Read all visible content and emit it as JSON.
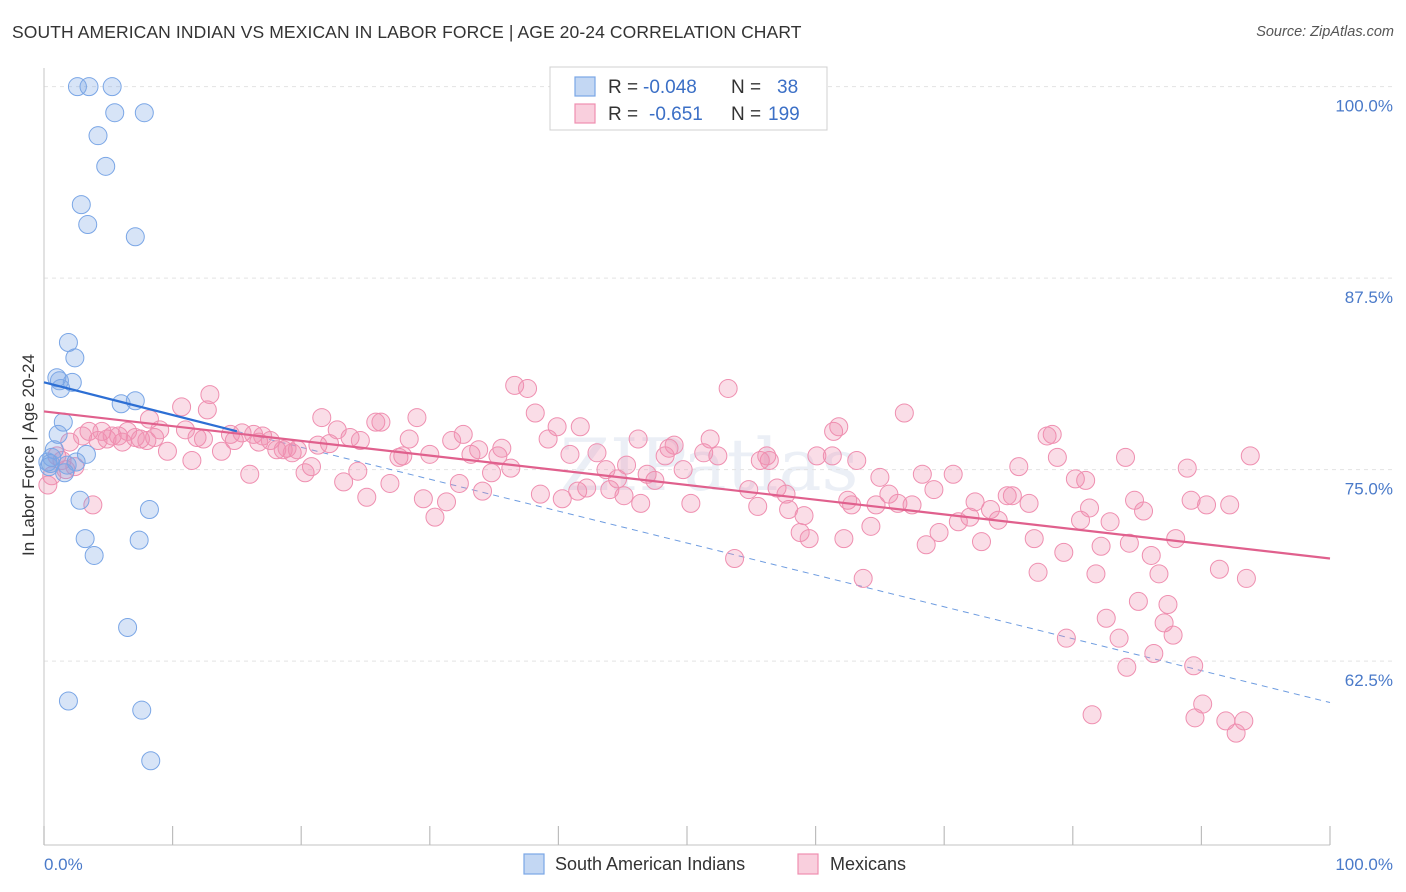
{
  "title": "SOUTH AMERICAN INDIAN VS MEXICAN IN LABOR FORCE | AGE 20-24 CORRELATION CHART",
  "source": "Source: ZipAtlas.com",
  "watermark": "ZIPatlas",
  "colors": {
    "blue": "#7aa6e6",
    "blue_line": "#2d6fd4",
    "pink": "#ef8fb0",
    "pink_line": "#e0608d",
    "tick": "#4a7ac9"
  },
  "legend": {
    "rows": [
      {
        "r_label": "R =",
        "r_value": "-0.048",
        "n_label": "N =",
        "n_value": "38"
      },
      {
        "r_label": "R =",
        "r_value": "-0.651",
        "n_label": "N =",
        "n_value": "199"
      }
    ]
  },
  "chart_data": {
    "type": "scatter",
    "title": "SOUTH AMERICAN INDIAN VS MEXICAN IN LABOR FORCE | AGE 20-24 CORRELATION CHART",
    "xlabel": "",
    "ylabel": "In Labor Force | Age 20-24",
    "xlim": [
      0,
      100
    ],
    "ylim": [
      50.5,
      100.5
    ],
    "x_tick_labels": [
      "0.0%",
      "100.0%"
    ],
    "y_ticks": [
      62.5,
      75.0,
      87.5,
      100.0
    ],
    "y_tick_labels": [
      "62.5%",
      "75.0%",
      "87.5%",
      "100.0%"
    ],
    "grid": true,
    "legend_position": "bottom-center",
    "series": [
      {
        "name": "South American Indians",
        "color": "#7aa6e6",
        "points": [
          [
            0.3,
            75.5
          ],
          [
            0.5,
            75.4
          ],
          [
            0.6,
            75.8
          ],
          [
            0.8,
            76.3
          ],
          [
            1.0,
            81.0
          ],
          [
            1.1,
            77.3
          ],
          [
            1.2,
            80.8
          ],
          [
            1.3,
            80.3
          ],
          [
            1.5,
            78.1
          ],
          [
            1.6,
            74.8
          ],
          [
            1.8,
            75.3
          ],
          [
            1.9,
            83.3
          ],
          [
            2.2,
            80.7
          ],
          [
            2.4,
            82.3
          ],
          [
            2.5,
            75.5
          ],
          [
            2.6,
            100.0
          ],
          [
            2.8,
            73.0
          ],
          [
            2.9,
            92.3
          ],
          [
            3.2,
            70.5
          ],
          [
            3.3,
            76.0
          ],
          [
            3.4,
            91.0
          ],
          [
            3.5,
            100.0
          ],
          [
            3.9,
            69.4
          ],
          [
            4.2,
            96.8
          ],
          [
            4.8,
            94.8
          ],
          [
            5.3,
            100.0
          ],
          [
            5.5,
            98.3
          ],
          [
            6.0,
            79.3
          ],
          [
            6.5,
            64.7
          ],
          [
            7.1,
            90.2
          ],
          [
            7.1,
            79.5
          ],
          [
            7.4,
            70.4
          ],
          [
            7.6,
            59.3
          ],
          [
            7.8,
            98.3
          ],
          [
            8.2,
            72.4
          ],
          [
            8.3,
            56.0
          ],
          [
            1.9,
            59.9
          ],
          [
            0.4,
            75.2
          ]
        ],
        "trend": {
          "x": [
            0,
            15
          ],
          "y": [
            80.7,
            77.5
          ]
        },
        "trend_extended": {
          "x": [
            15,
            100
          ],
          "y": [
            77.5,
            59.8
          ]
        }
      },
      {
        "name": "Mexicans",
        "color": "#ef8fb0",
        "points": [
          [
            0.3,
            74.0
          ],
          [
            0.6,
            74.6
          ],
          [
            1.0,
            75.9
          ],
          [
            1.4,
            75.6
          ],
          [
            1.7,
            75.0
          ],
          [
            2.0,
            76.8
          ],
          [
            2.4,
            75.2
          ],
          [
            3.0,
            77.2
          ],
          [
            3.5,
            77.5
          ],
          [
            3.8,
            72.7
          ],
          [
            4.2,
            76.9
          ],
          [
            4.5,
            77.5
          ],
          [
            4.9,
            77.0
          ],
          [
            5.3,
            77.2
          ],
          [
            5.8,
            77.2
          ],
          [
            6.1,
            76.8
          ],
          [
            6.5,
            77.5
          ],
          [
            7.1,
            77.1
          ],
          [
            7.5,
            77.0
          ],
          [
            8.0,
            76.9
          ],
          [
            8.2,
            78.3
          ],
          [
            8.6,
            77.1
          ],
          [
            9.0,
            77.6
          ],
          [
            9.6,
            76.2
          ],
          [
            10.7,
            79.1
          ],
          [
            11.0,
            77.6
          ],
          [
            11.5,
            75.6
          ],
          [
            11.9,
            77.1
          ],
          [
            12.4,
            77.0
          ],
          [
            12.7,
            78.9
          ],
          [
            12.9,
            79.9
          ],
          [
            13.8,
            76.2
          ],
          [
            14.5,
            77.3
          ],
          [
            14.8,
            76.9
          ],
          [
            15.4,
            77.4
          ],
          [
            16.0,
            74.7
          ],
          [
            16.3,
            77.3
          ],
          [
            16.7,
            76.8
          ],
          [
            17.0,
            77.2
          ],
          [
            17.6,
            76.9
          ],
          [
            18.1,
            76.3
          ],
          [
            18.6,
            76.3
          ],
          [
            18.9,
            76.4
          ],
          [
            19.3,
            76.1
          ],
          [
            19.7,
            76.3
          ],
          [
            20.3,
            74.8
          ],
          [
            20.8,
            75.2
          ],
          [
            21.3,
            76.6
          ],
          [
            21.6,
            78.4
          ],
          [
            22.2,
            76.7
          ],
          [
            22.8,
            77.6
          ],
          [
            23.3,
            74.2
          ],
          [
            23.8,
            77.1
          ],
          [
            24.4,
            74.9
          ],
          [
            24.6,
            76.9
          ],
          [
            25.1,
            73.2
          ],
          [
            25.8,
            78.1
          ],
          [
            26.2,
            78.1
          ],
          [
            26.9,
            74.1
          ],
          [
            27.6,
            75.8
          ],
          [
            27.9,
            75.9
          ],
          [
            28.4,
            77.0
          ],
          [
            29.0,
            78.4
          ],
          [
            29.5,
            73.1
          ],
          [
            30.0,
            76.0
          ],
          [
            30.4,
            71.9
          ],
          [
            31.3,
            72.9
          ],
          [
            31.7,
            76.9
          ],
          [
            32.3,
            74.1
          ],
          [
            32.6,
            77.3
          ],
          [
            33.2,
            76.0
          ],
          [
            33.8,
            76.3
          ],
          [
            34.1,
            73.6
          ],
          [
            34.8,
            74.8
          ],
          [
            35.3,
            75.9
          ],
          [
            35.6,
            76.4
          ],
          [
            36.3,
            75.1
          ],
          [
            36.6,
            80.5
          ],
          [
            37.6,
            80.3
          ],
          [
            38.2,
            78.7
          ],
          [
            38.6,
            73.4
          ],
          [
            39.2,
            77.0
          ],
          [
            39.9,
            77.8
          ],
          [
            40.3,
            73.1
          ],
          [
            40.9,
            76.0
          ],
          [
            41.5,
            73.6
          ],
          [
            41.7,
            77.8
          ],
          [
            42.2,
            73.8
          ],
          [
            43.0,
            76.1
          ],
          [
            43.7,
            75.0
          ],
          [
            44.0,
            73.7
          ],
          [
            44.6,
            74.4
          ],
          [
            45.1,
            73.3
          ],
          [
            45.3,
            75.3
          ],
          [
            46.2,
            77.0
          ],
          [
            46.4,
            72.8
          ],
          [
            46.9,
            74.7
          ],
          [
            47.5,
            74.3
          ],
          [
            48.3,
            75.9
          ],
          [
            48.6,
            76.4
          ],
          [
            49.0,
            76.6
          ],
          [
            49.7,
            75.0
          ],
          [
            50.3,
            72.8
          ],
          [
            51.3,
            76.1
          ],
          [
            51.8,
            77.0
          ],
          [
            52.4,
            75.9
          ],
          [
            53.7,
            69.2
          ],
          [
            53.2,
            80.3
          ],
          [
            54.8,
            73.7
          ],
          [
            55.5,
            72.6
          ],
          [
            55.7,
            75.6
          ],
          [
            56.2,
            75.9
          ],
          [
            56.4,
            75.6
          ],
          [
            57.0,
            73.8
          ],
          [
            57.7,
            73.4
          ],
          [
            57.9,
            72.4
          ],
          [
            58.8,
            70.9
          ],
          [
            59.1,
            72.0
          ],
          [
            59.5,
            70.5
          ],
          [
            60.1,
            75.9
          ],
          [
            61.3,
            75.9
          ],
          [
            61.4,
            77.5
          ],
          [
            61.8,
            77.8
          ],
          [
            62.2,
            70.5
          ],
          [
            62.5,
            73.0
          ],
          [
            62.8,
            72.7
          ],
          [
            63.2,
            75.6
          ],
          [
            63.7,
            67.9
          ],
          [
            64.3,
            71.3
          ],
          [
            64.7,
            72.7
          ],
          [
            65.0,
            74.5
          ],
          [
            65.7,
            73.4
          ],
          [
            66.4,
            72.8
          ],
          [
            66.9,
            78.7
          ],
          [
            67.5,
            72.7
          ],
          [
            68.3,
            74.7
          ],
          [
            68.6,
            70.1
          ],
          [
            69.2,
            73.7
          ],
          [
            69.6,
            70.9
          ],
          [
            70.7,
            74.7
          ],
          [
            71.1,
            71.6
          ],
          [
            72.0,
            71.9
          ],
          [
            72.4,
            72.9
          ],
          [
            72.9,
            70.3
          ],
          [
            73.6,
            72.4
          ],
          [
            74.2,
            71.7
          ],
          [
            74.9,
            73.3
          ],
          [
            75.3,
            73.3
          ],
          [
            75.8,
            75.2
          ],
          [
            76.6,
            72.8
          ],
          [
            77.0,
            70.5
          ],
          [
            77.3,
            68.3
          ],
          [
            78.0,
            77.2
          ],
          [
            78.4,
            77.3
          ],
          [
            78.8,
            75.8
          ],
          [
            79.3,
            69.6
          ],
          [
            79.5,
            64.0
          ],
          [
            80.2,
            74.4
          ],
          [
            80.6,
            71.7
          ],
          [
            81.0,
            74.3
          ],
          [
            81.3,
            72.5
          ],
          [
            81.8,
            68.2
          ],
          [
            82.2,
            70.0
          ],
          [
            82.6,
            65.3
          ],
          [
            82.9,
            71.6
          ],
          [
            83.6,
            64.0
          ],
          [
            84.1,
            75.8
          ],
          [
            84.4,
            70.2
          ],
          [
            84.8,
            73.0
          ],
          [
            85.1,
            66.4
          ],
          [
            85.5,
            72.3
          ],
          [
            86.1,
            69.4
          ],
          [
            86.3,
            63.0
          ],
          [
            86.7,
            68.2
          ],
          [
            87.1,
            65.0
          ],
          [
            87.4,
            66.2
          ],
          [
            87.8,
            64.2
          ],
          [
            88.0,
            70.5
          ],
          [
            88.9,
            75.1
          ],
          [
            89.2,
            73.0
          ],
          [
            89.5,
            58.8
          ],
          [
            90.1,
            59.7
          ],
          [
            90.4,
            72.7
          ],
          [
            91.4,
            68.5
          ],
          [
            91.9,
            58.6
          ],
          [
            92.2,
            72.7
          ],
          [
            92.7,
            57.8
          ],
          [
            93.3,
            58.6
          ],
          [
            93.5,
            67.9
          ],
          [
            93.8,
            75.9
          ],
          [
            81.5,
            59.0
          ],
          [
            84.2,
            62.1
          ],
          [
            89.4,
            62.2
          ]
        ],
        "trend": {
          "x": [
            0,
            100
          ],
          "y": [
            78.8,
            69.2
          ]
        }
      }
    ]
  }
}
